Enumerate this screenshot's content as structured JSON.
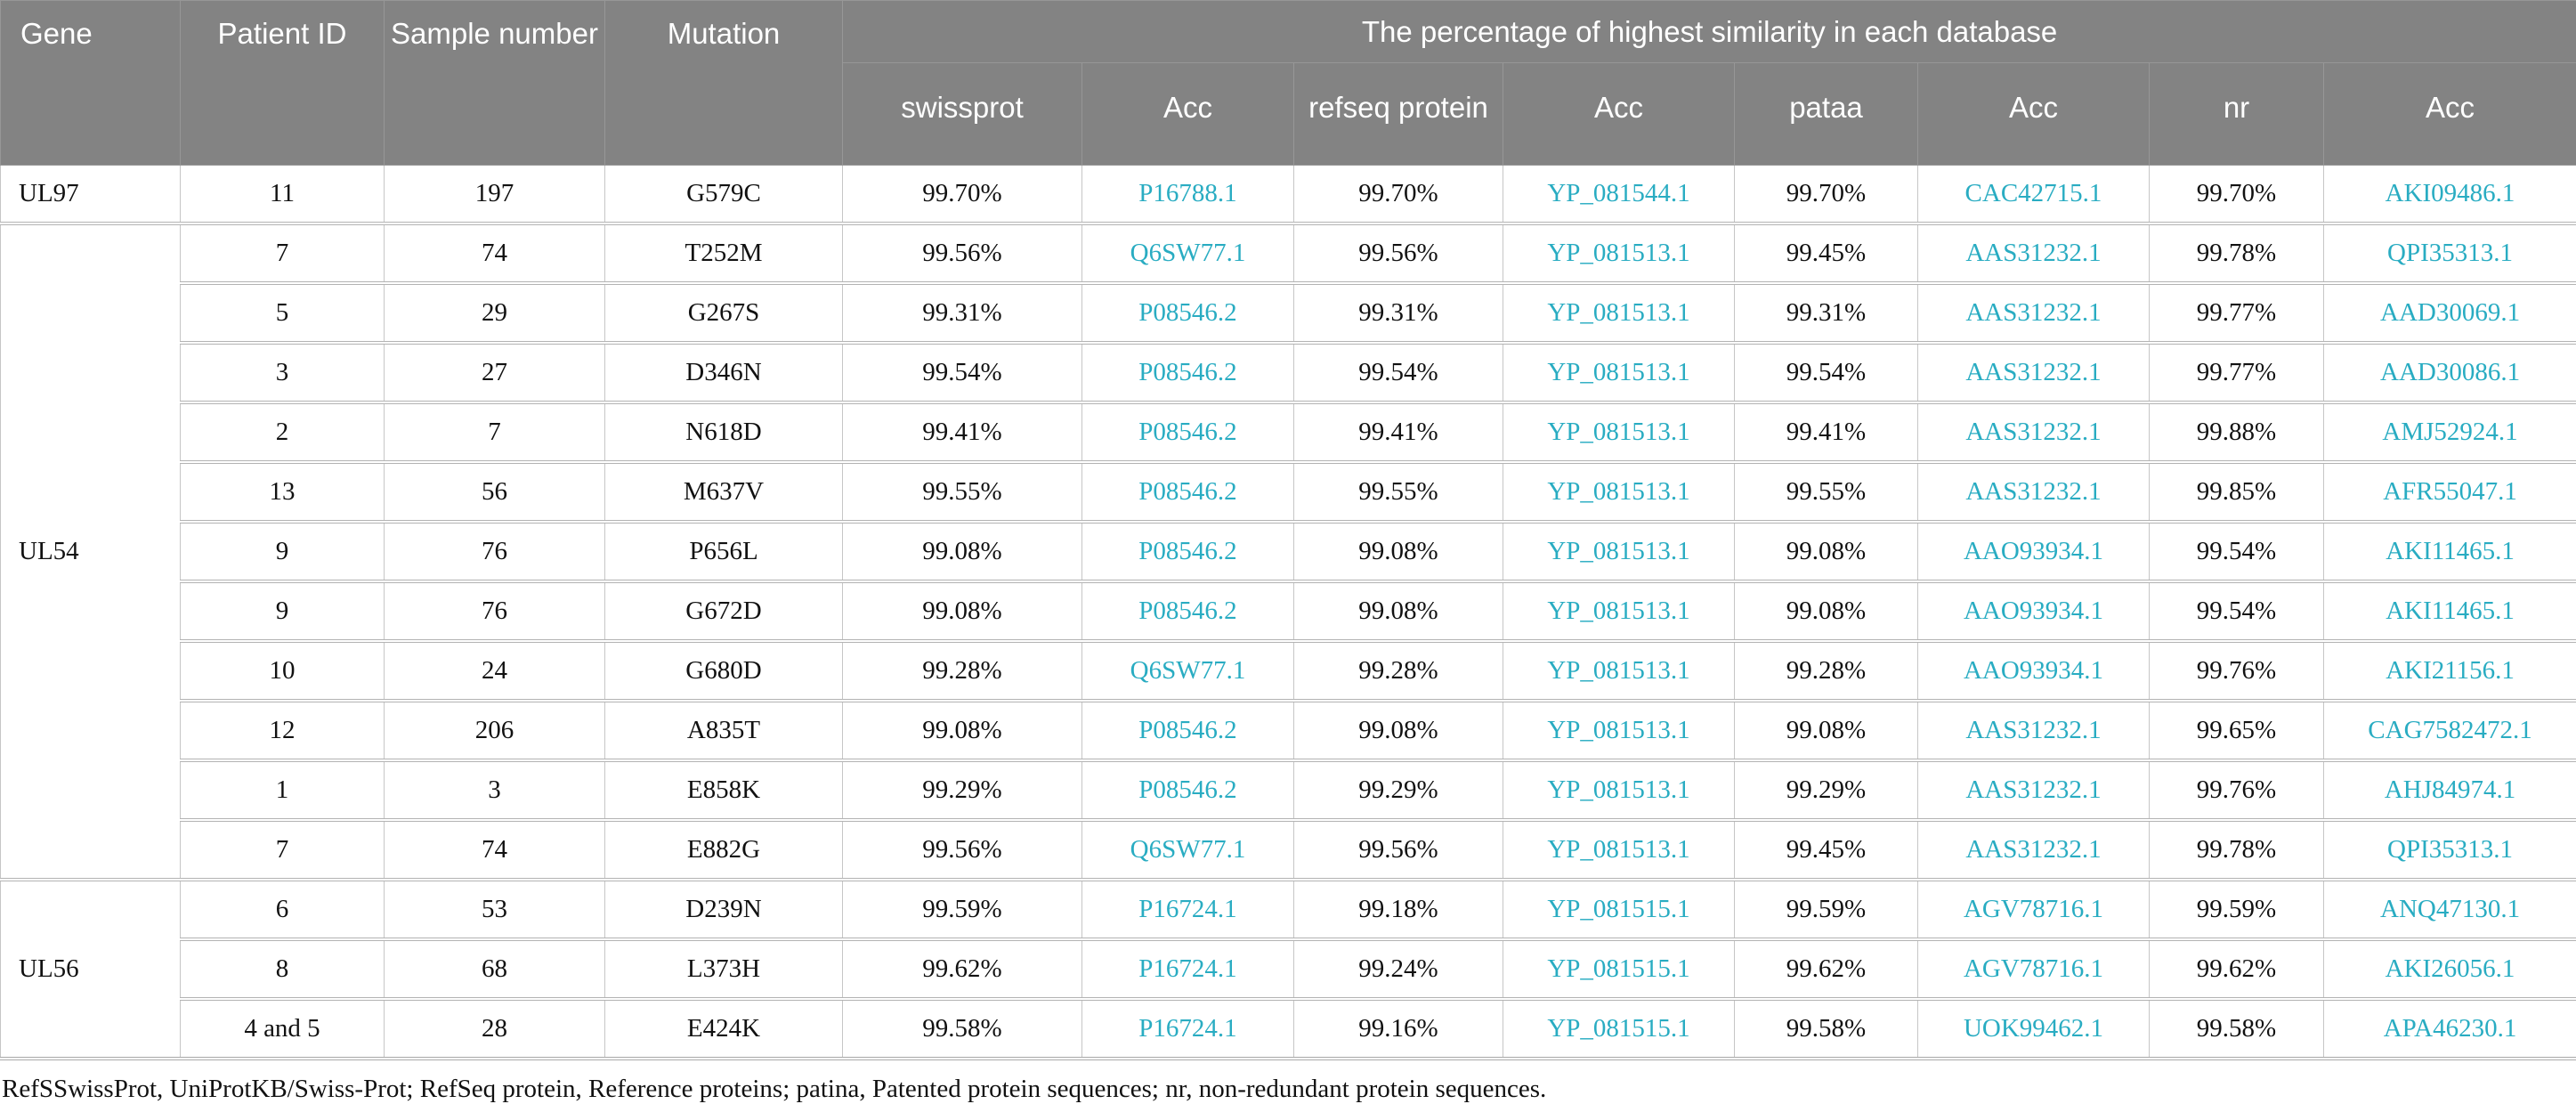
{
  "header": {
    "gene": "Gene",
    "patient_id": "Patient ID",
    "sample_number": "Sample number",
    "mutation": "Mutation",
    "similarity_group": "The percentage of highest similarity in each database",
    "subcolumns": [
      "swissprot",
      "Acc",
      "refseq protein",
      "Acc",
      "pataa",
      "Acc",
      "nr",
      "Acc"
    ]
  },
  "colors": {
    "header_bg": "#838383",
    "header_text": "#ffffff",
    "accession_link": "#29acc2",
    "grid_line": "#c6c6c6"
  },
  "groups": [
    {
      "gene": "UL97",
      "rows": [
        {
          "patient_id": "11",
          "sample_number": "197",
          "mutation": "G579C",
          "similarity": [
            [
              "99.70%",
              "P16788.1"
            ],
            [
              "99.70%",
              "YP_081544.1"
            ],
            [
              "99.70%",
              "CAC42715.1"
            ],
            [
              "99.70%",
              "AKI09486.1"
            ]
          ]
        }
      ]
    },
    {
      "gene": "UL54",
      "rows": [
        {
          "patient_id": "7",
          "sample_number": "74",
          "mutation": "T252M",
          "similarity": [
            [
              "99.56%",
              "Q6SW77.1"
            ],
            [
              "99.56%",
              "YP_081513.1"
            ],
            [
              "99.45%",
              "AAS31232.1"
            ],
            [
              "99.78%",
              "QPI35313.1"
            ]
          ]
        },
        {
          "patient_id": "5",
          "sample_number": "29",
          "mutation": "G267S",
          "similarity": [
            [
              "99.31%",
              "P08546.2"
            ],
            [
              "99.31%",
              "YP_081513.1"
            ],
            [
              "99.31%",
              "AAS31232.1"
            ],
            [
              "99.77%",
              "AAD30069.1"
            ]
          ]
        },
        {
          "patient_id": "3",
          "sample_number": "27",
          "mutation": "D346N",
          "similarity": [
            [
              "99.54%",
              "P08546.2"
            ],
            [
              "99.54%",
              "YP_081513.1"
            ],
            [
              "99.54%",
              "AAS31232.1"
            ],
            [
              "99.77%",
              "AAD30086.1"
            ]
          ]
        },
        {
          "patient_id": "2",
          "sample_number": "7",
          "mutation": "N618D",
          "similarity": [
            [
              "99.41%",
              "P08546.2"
            ],
            [
              "99.41%",
              "YP_081513.1"
            ],
            [
              "99.41%",
              "AAS31232.1"
            ],
            [
              "99.88%",
              "AMJ52924.1"
            ]
          ]
        },
        {
          "patient_id": "13",
          "sample_number": "56",
          "mutation": "M637V",
          "similarity": [
            [
              "99.55%",
              "P08546.2"
            ],
            [
              "99.55%",
              "YP_081513.1"
            ],
            [
              "99.55%",
              "AAS31232.1"
            ],
            [
              "99.85%",
              "AFR55047.1"
            ]
          ]
        },
        {
          "patient_id": "9",
          "sample_number": "76",
          "mutation": "P656L",
          "similarity": [
            [
              "99.08%",
              "P08546.2"
            ],
            [
              "99.08%",
              "YP_081513.1"
            ],
            [
              "99.08%",
              "AAO93934.1"
            ],
            [
              "99.54%",
              "AKI11465.1"
            ]
          ]
        },
        {
          "patient_id": "9",
          "sample_number": "76",
          "mutation": "G672D",
          "similarity": [
            [
              "99.08%",
              "P08546.2"
            ],
            [
              "99.08%",
              "YP_081513.1"
            ],
            [
              "99.08%",
              "AAO93934.1"
            ],
            [
              "99.54%",
              "AKI11465.1"
            ]
          ]
        },
        {
          "patient_id": "10",
          "sample_number": "24",
          "mutation": "G680D",
          "similarity": [
            [
              "99.28%",
              "Q6SW77.1"
            ],
            [
              "99.28%",
              "YP_081513.1"
            ],
            [
              "99.28%",
              "AAO93934.1"
            ],
            [
              "99.76%",
              "AKI21156.1"
            ]
          ]
        },
        {
          "patient_id": "12",
          "sample_number": "206",
          "mutation": "A835T",
          "similarity": [
            [
              "99.08%",
              "P08546.2"
            ],
            [
              "99.08%",
              "YP_081513.1"
            ],
            [
              "99.08%",
              "AAS31232.1"
            ],
            [
              "99.65%",
              "CAG7582472.1"
            ]
          ]
        },
        {
          "patient_id": "1",
          "sample_number": "3",
          "mutation": "E858K",
          "similarity": [
            [
              "99.29%",
              "P08546.2"
            ],
            [
              "99.29%",
              "YP_081513.1"
            ],
            [
              "99.29%",
              "AAS31232.1"
            ],
            [
              "99.76%",
              "AHJ84974.1"
            ]
          ]
        },
        {
          "patient_id": "7",
          "sample_number": "74",
          "mutation": "E882G",
          "similarity": [
            [
              "99.56%",
              "Q6SW77.1"
            ],
            [
              "99.56%",
              "YP_081513.1"
            ],
            [
              "99.45%",
              "AAS31232.1"
            ],
            [
              "99.78%",
              "QPI35313.1"
            ]
          ]
        }
      ]
    },
    {
      "gene": "UL56",
      "rows": [
        {
          "patient_id": "6",
          "sample_number": "53",
          "mutation": "D239N",
          "similarity": [
            [
              "99.59%",
              "P16724.1"
            ],
            [
              "99.18%",
              "YP_081515.1"
            ],
            [
              "99.59%",
              "AGV78716.1"
            ],
            [
              "99.59%",
              "ANQ47130.1"
            ]
          ]
        },
        {
          "patient_id": "8",
          "sample_number": "68",
          "mutation": "L373H",
          "similarity": [
            [
              "99.62%",
              "P16724.1"
            ],
            [
              "99.24%",
              "YP_081515.1"
            ],
            [
              "99.62%",
              "AGV78716.1"
            ],
            [
              "99.62%",
              "AKI26056.1"
            ]
          ]
        },
        {
          "patient_id": "4 and 5",
          "sample_number": "28",
          "mutation": "E424K",
          "similarity": [
            [
              "99.58%",
              "P16724.1"
            ],
            [
              "99.16%",
              "YP_081515.1"
            ],
            [
              "99.58%",
              "UOK99462.1"
            ],
            [
              "99.58%",
              "APA46230.1"
            ]
          ]
        }
      ]
    }
  ],
  "footnote": "RefSSwissProt, UniProtKB/Swiss-Prot; RefSeq protein, Reference proteins; patina, Patented protein sequences; nr, non-redundant protein sequences."
}
